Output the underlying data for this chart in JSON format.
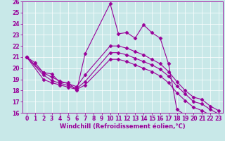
{
  "xlabel": "Windchill (Refroidissement éolien,°C)",
  "background_color": "#c8e8e8",
  "line_color": "#990099",
  "grid_color": "#ffffff",
  "xlim": [
    -0.5,
    23.5
  ],
  "ylim": [
    16,
    26
  ],
  "xticks": [
    0,
    1,
    2,
    3,
    4,
    5,
    6,
    7,
    8,
    9,
    10,
    11,
    12,
    13,
    14,
    15,
    16,
    17,
    18,
    19,
    20,
    21,
    22,
    23
  ],
  "yticks": [
    16,
    17,
    18,
    19,
    20,
    21,
    22,
    23,
    24,
    25,
    26
  ],
  "curve1_x": [
    0,
    1,
    2,
    3,
    4,
    5,
    6,
    7,
    10,
    11,
    12,
    13,
    14,
    15,
    16,
    17,
    18,
    19,
    20,
    21,
    22,
    23
  ],
  "curve1_y": [
    21.0,
    20.5,
    19.6,
    19.5,
    18.7,
    18.7,
    18.0,
    21.3,
    25.8,
    23.1,
    23.2,
    22.7,
    23.9,
    23.2,
    22.7,
    20.4,
    16.3,
    15.8,
    15.8,
    15.8,
    15.8,
    15.7
  ],
  "curve2_x": [
    0,
    2,
    3,
    4,
    5,
    6,
    7,
    10,
    11,
    12,
    13,
    14,
    15,
    16,
    17,
    18,
    19,
    20,
    21,
    22,
    23
  ],
  "curve2_y": [
    21.0,
    19.6,
    19.2,
    18.85,
    18.6,
    18.35,
    19.4,
    22.0,
    22.0,
    21.8,
    21.5,
    21.2,
    20.8,
    20.4,
    19.7,
    18.8,
    18.0,
    17.4,
    17.2,
    16.6,
    16.2
  ],
  "curve3_x": [
    0,
    2,
    3,
    4,
    5,
    6,
    7,
    10,
    11,
    12,
    13,
    14,
    15,
    16,
    17,
    18,
    19,
    20,
    21,
    22,
    23
  ],
  "curve3_y": [
    21.0,
    19.4,
    18.9,
    18.65,
    18.45,
    18.2,
    18.8,
    21.4,
    21.4,
    21.2,
    20.9,
    20.6,
    20.3,
    19.9,
    19.3,
    18.4,
    17.7,
    17.0,
    16.8,
    16.3,
    15.9
  ],
  "curve4_x": [
    0,
    2,
    3,
    4,
    5,
    6,
    7,
    10,
    11,
    12,
    13,
    14,
    15,
    16,
    17,
    18,
    19,
    20,
    21,
    22,
    23
  ],
  "curve4_y": [
    21.0,
    19.0,
    18.7,
    18.5,
    18.3,
    18.1,
    18.5,
    20.8,
    20.8,
    20.6,
    20.3,
    20.0,
    19.7,
    19.3,
    18.7,
    17.8,
    17.1,
    16.5,
    16.2,
    15.8,
    15.5
  ],
  "marker": "D",
  "markersize": 2.5,
  "linewidth": 0.8,
  "tick_fontsize": 5.5,
  "xlabel_fontsize": 6.0
}
